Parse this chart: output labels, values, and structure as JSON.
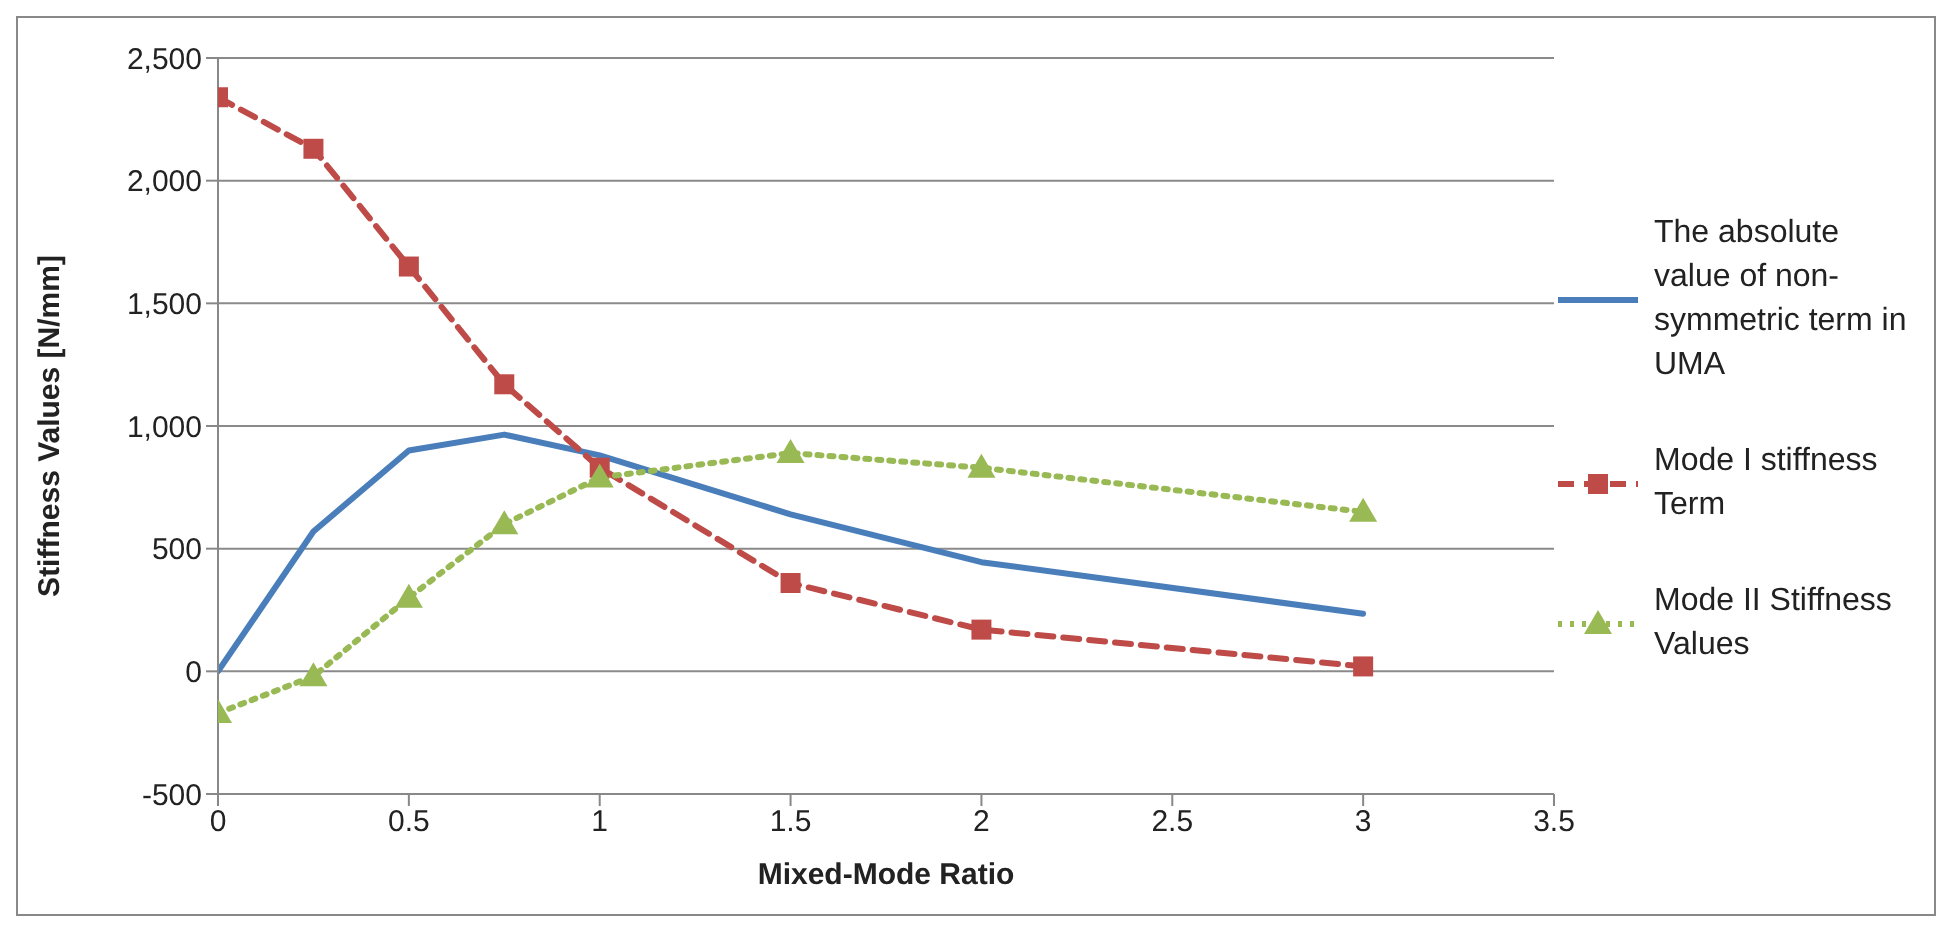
{
  "chart_data": {
    "type": "line",
    "xlabel": "Mixed-Mode Ratio",
    "ylabel": "Stiffness Values [N/mm]",
    "x": [
      0,
      0.25,
      0.5,
      0.75,
      1,
      1.5,
      2,
      3
    ],
    "series": [
      {
        "name": "The absolute value of non-symmetric term in UMA",
        "color": "#4a7ebb",
        "values": [
          0,
          570,
          900,
          965,
          880,
          640,
          445,
          235
        ],
        "marker": "none",
        "line_style": "solid"
      },
      {
        "name": "Mode I stiffness Term",
        "color": "#be4b48",
        "values": [
          2340,
          2130,
          1650,
          1170,
          830,
          360,
          170,
          20
        ],
        "marker": "square",
        "line_style": "dashed"
      },
      {
        "name": "Mode II Stiffness Values",
        "color": "#98b954",
        "values": [
          -170,
          -20,
          300,
          600,
          790,
          890,
          830,
          650
        ],
        "marker": "triangle",
        "line_style": "dotted"
      }
    ],
    "xlim": [
      0,
      3.5
    ],
    "xticks": [
      0,
      0.5,
      1,
      1.5,
      2,
      2.5,
      3,
      3.5
    ],
    "ylim": [
      -500,
      2500
    ],
    "yticks": [
      {
        "value": -500,
        "label": "-500"
      },
      0,
      500,
      {
        "value": 1000,
        "label": "1,000"
      },
      {
        "value": 1500,
        "label": "1,500"
      },
      {
        "value": 2000,
        "label": "2,000"
      },
      {
        "value": 2500,
        "label": "2,500"
      }
    ],
    "grid": "y",
    "legend": "right"
  }
}
